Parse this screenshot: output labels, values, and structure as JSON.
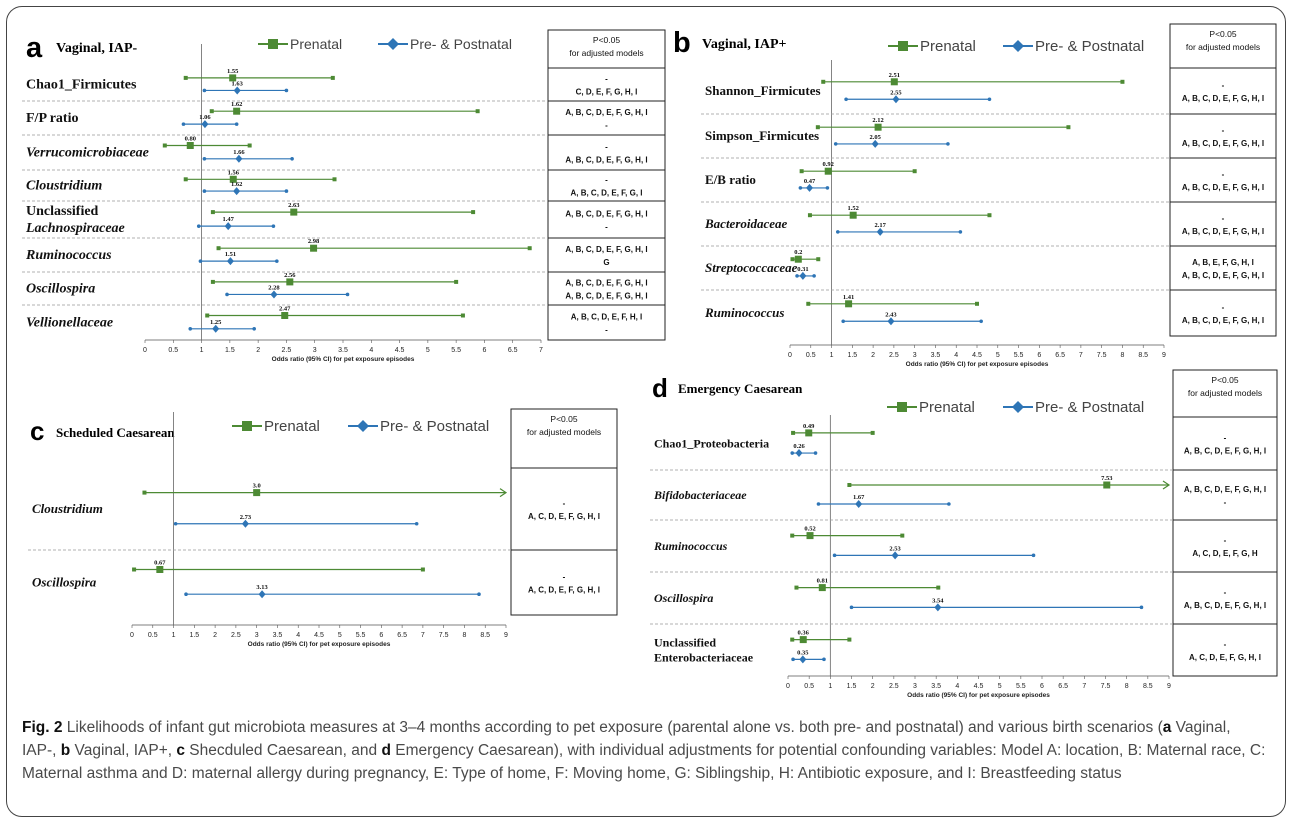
{
  "legend": {
    "prenatal": "Prenatal",
    "both": "Pre- & Postnatal"
  },
  "colors": {
    "prenatal": "#4d8a34",
    "both": "#2e75b6"
  },
  "sig_header": [
    "P<0.05",
    "for adjusted models"
  ],
  "x_axis_label": "Odds ratio (95% CI) for pet exposure episodes",
  "caption": {
    "fig": "Fig. 2",
    "parts": [
      " Likelihoods of infant gut microbiota measures at 3–4 months according to pet exposure (parental alone vs. both pre- and postnatal) and various birth scenarios (",
      {
        "b": "a"
      },
      " Vaginal, IAP-, ",
      {
        "b": "b"
      },
      " Vaginal, IAP+, ",
      {
        "b": "c"
      },
      " Shecduled Caesarean, and ",
      {
        "b": "d"
      },
      " Emergency Caesarean), with individual adjustments for potential confounding variables: Model A: location, B: Maternal race, C: Maternal asthma and D: maternal allergy during pregnancy, E: Type of home, F: Moving home, G: Siblingship, H: Antibiotic exposure, and I: Breastfeeding status"
    ]
  },
  "chart_data": [
    {
      "panel": "a",
      "title": "Vaginal, IAP-",
      "type": "forest",
      "xlim": [
        0,
        7
      ],
      "ticks": [
        "0",
        "0.5",
        "1",
        "1.5",
        "2",
        "2.5",
        "3",
        "3.5",
        "4",
        "4.5",
        "5",
        "5.5",
        "6",
        "6.5",
        "7"
      ],
      "reference_line": 1,
      "rows": [
        {
          "label": [
            "Chao1_Firmicutes"
          ],
          "italic": false,
          "prenatal": {
            "or": 1.55,
            "lo": 0.72,
            "hi": 3.32
          },
          "both": {
            "or": 1.63,
            "lo": 1.05,
            "hi": 2.5
          },
          "sig": [
            "-",
            "C, D, E, F, G, H, I"
          ]
        },
        {
          "label": [
            "F/P ratio"
          ],
          "italic": false,
          "prenatal": {
            "or": 1.62,
            "lo": 1.18,
            "hi": 5.88
          },
          "both": {
            "or": 1.06,
            "lo": 0.68,
            "hi": 1.62
          },
          "sig": [
            "A, B, C, D, E, F, G, H, I",
            "-"
          ]
        },
        {
          "label": [
            "Verrucomicrobiaceae"
          ],
          "italic": true,
          "prenatal": {
            "or": 0.8,
            "lo": 0.35,
            "hi": 1.85
          },
          "both": {
            "or": 1.66,
            "lo": 1.05,
            "hi": 2.6
          },
          "sig": [
            "-",
            "A, B, C, D, E, F, G, H, I"
          ]
        },
        {
          "label": [
            "Cloustridium"
          ],
          "italic": true,
          "prenatal": {
            "or": 1.56,
            "lo": 0.72,
            "hi": 3.35
          },
          "both": {
            "or": 1.62,
            "lo": 1.05,
            "hi": 2.5
          },
          "sig": [
            "-",
            "A, B, C, D, E, F, G, I"
          ]
        },
        {
          "label": [
            "Unclassified",
            "Lachnospiraceae"
          ],
          "italic": [
            false,
            true
          ],
          "prenatal": {
            "or": 2.63,
            "lo": 1.2,
            "hi": 5.8
          },
          "both": {
            "or": 1.47,
            "lo": 0.95,
            "hi": 2.27
          },
          "sig": [
            "A, B, C, D, E, F, G, H, I",
            "-"
          ]
        },
        {
          "label": [
            "Ruminococcus"
          ],
          "italic": true,
          "prenatal": {
            "or": 2.98,
            "lo": 1.3,
            "hi": 6.8
          },
          "both": {
            "or": 1.51,
            "lo": 0.98,
            "hi": 2.33
          },
          "sig": [
            "A, B, C, D, E, F, G, H, I",
            "G"
          ]
        },
        {
          "label": [
            "Oscillospira"
          ],
          "italic": true,
          "prenatal": {
            "or": 2.56,
            "lo": 1.2,
            "hi": 5.5
          },
          "both": {
            "or": 2.28,
            "lo": 1.45,
            "hi": 3.58
          },
          "sig": [
            "A, B, C, D, E, F, G, H, I",
            "A, B, C, D, E, F, G, H, I"
          ]
        },
        {
          "label": [
            "Vellionellaceae"
          ],
          "italic": true,
          "prenatal": {
            "or": 2.47,
            "lo": 1.1,
            "hi": 5.62
          },
          "both": {
            "or": 1.25,
            "lo": 0.8,
            "hi": 1.93
          },
          "sig": [
            "A, B, C, D, E, F, H, I",
            "-"
          ]
        }
      ]
    },
    {
      "panel": "b",
      "title": "Vaginal, IAP+",
      "type": "forest",
      "xlim": [
        0,
        9
      ],
      "ticks": [
        "0",
        "0.5",
        "1",
        "1.5",
        "2",
        "2.5",
        "3",
        "3.5",
        "4",
        "4.5",
        "5",
        "5.5",
        "6",
        "6.5",
        "7",
        "7.5",
        "8",
        "8.5",
        "9"
      ],
      "reference_line": 1,
      "rows": [
        {
          "label": [
            "Shannon_Firmicutes"
          ],
          "italic": false,
          "prenatal": {
            "or": 2.51,
            "lo": 0.8,
            "hi": 8.0
          },
          "both": {
            "or": 2.55,
            "lo": 1.35,
            "hi": 4.8
          },
          "sig": [
            "-",
            "A, B, C, D, E, F, G, H, I"
          ]
        },
        {
          "label": [
            "Simpson_Firmicutes"
          ],
          "italic": false,
          "prenatal": {
            "or": 2.12,
            "lo": 0.67,
            "hi": 6.7
          },
          "both": {
            "or": 2.05,
            "lo": 1.1,
            "hi": 3.8
          },
          "sig": [
            "-",
            "A, B, C, D, E, F, G, H, I"
          ]
        },
        {
          "label": [
            "E/B ratio"
          ],
          "italic": false,
          "prenatal": {
            "or": 0.92,
            "lo": 0.28,
            "hi": 3.0
          },
          "both": {
            "or": 0.47,
            "lo": 0.25,
            "hi": 0.9
          },
          "sig": [
            "-",
            "A, B, C, D, E, F, G, H, I"
          ]
        },
        {
          "label": [
            "Bacteroidaceae"
          ],
          "italic": true,
          "prenatal": {
            "or": 1.52,
            "lo": 0.48,
            "hi": 4.8
          },
          "both": {
            "or": 2.17,
            "lo": 1.15,
            "hi": 4.1
          },
          "sig": [
            "-",
            "A, B, C, D, E, F, G, H, I"
          ]
        },
        {
          "label": [
            "Streptococcaceae"
          ],
          "italic": true,
          "prenatal": {
            "or": 0.2,
            "lo": 0.06,
            "hi": 0.68
          },
          "both": {
            "or": 0.31,
            "lo": 0.17,
            "hi": 0.58
          },
          "sig": [
            "A, B, E, F, G, H, I",
            "A, B, C, D, E, F, G, H, I"
          ]
        },
        {
          "label": [
            "Ruminococcus"
          ],
          "italic": true,
          "prenatal": {
            "or": 1.41,
            "lo": 0.44,
            "hi": 4.5
          },
          "both": {
            "or": 2.43,
            "lo": 1.28,
            "hi": 4.6
          },
          "sig": [
            "-",
            "A, B, C, D, E, F, G, H, I"
          ]
        }
      ]
    },
    {
      "panel": "c",
      "title": "Scheduled Caesarean",
      "type": "forest",
      "xlim": [
        0,
        9
      ],
      "ticks": [
        "0",
        "0.5",
        "1",
        "1.5",
        "2",
        "2.5",
        "3",
        "3.5",
        "4",
        "4.5",
        "5",
        "5.5",
        "6",
        "6.5",
        "7",
        "7.5",
        "8",
        "8.5",
        "9"
      ],
      "reference_line": 1,
      "rows": [
        {
          "label": [
            "Cloustridium"
          ],
          "italic": true,
          "prenatal": {
            "or": 3.0,
            "lo": 0.3,
            "hi": 9.0,
            "arrow": true
          },
          "both": {
            "or": 2.73,
            "lo": 1.05,
            "hi": 6.85
          },
          "sig": [
            "-",
            "A, C, D, E, F, G, H, I"
          ]
        },
        {
          "label": [
            "Oscillospira"
          ],
          "italic": true,
          "prenatal": {
            "or": 0.67,
            "lo": 0.05,
            "hi": 7.0
          },
          "both": {
            "or": 3.13,
            "lo": 1.3,
            "hi": 8.35
          },
          "sig": [
            "-",
            "A, C, D, E, F, G, H, I"
          ]
        }
      ]
    },
    {
      "panel": "d",
      "title": "Emergency Caesarean",
      "type": "forest",
      "xlim": [
        0,
        9
      ],
      "ticks": [
        "0",
        "0.5",
        "1",
        "1.5",
        "2",
        "2.5",
        "3",
        "3.5",
        "4",
        "4.5",
        "5",
        "5.5",
        "6",
        "6.5",
        "7",
        "7.5",
        "8",
        "8.5",
        "9"
      ],
      "reference_line": 1,
      "rows": [
        {
          "label": [
            "Chao1_Proteobacteria"
          ],
          "italic": false,
          "prenatal": {
            "or": 0.49,
            "lo": 0.12,
            "hi": 2.0
          },
          "both": {
            "or": 0.26,
            "lo": 0.1,
            "hi": 0.65
          },
          "sig": [
            "-",
            "A, B, C, D, E, F, G, H, I"
          ]
        },
        {
          "label": [
            "Bifidobacteriaceae"
          ],
          "italic": true,
          "prenatal": {
            "or": 7.53,
            "lo": 1.45,
            "hi": 9.0,
            "arrow": true
          },
          "both": {
            "or": 1.67,
            "lo": 0.72,
            "hi": 3.8
          },
          "sig": [
            "A, B, C, D, E, F, G, H, I",
            "-"
          ]
        },
        {
          "label": [
            "Ruminococcus"
          ],
          "italic": true,
          "prenatal": {
            "or": 0.52,
            "lo": 0.1,
            "hi": 2.7
          },
          "both": {
            "or": 2.53,
            "lo": 1.1,
            "hi": 5.8
          },
          "sig": [
            "-",
            "A, C, D, E, F, G, H"
          ]
        },
        {
          "label": [
            "Oscillospira"
          ],
          "italic": true,
          "prenatal": {
            "or": 0.81,
            "lo": 0.2,
            "hi": 3.55
          },
          "both": {
            "or": 3.54,
            "lo": 1.5,
            "hi": 8.35
          },
          "sig": [
            "-",
            "A, B, C, D, E, F, G, H, I"
          ]
        },
        {
          "label": [
            "Unclassified",
            "Enterobacteriaceae"
          ],
          "italic": false,
          "prenatal": {
            "or": 0.36,
            "lo": 0.1,
            "hi": 1.45
          },
          "both": {
            "or": 0.35,
            "lo": 0.12,
            "hi": 0.85
          },
          "sig": [
            "-",
            "A, C, D, E, F, G, H, I"
          ]
        }
      ]
    }
  ]
}
